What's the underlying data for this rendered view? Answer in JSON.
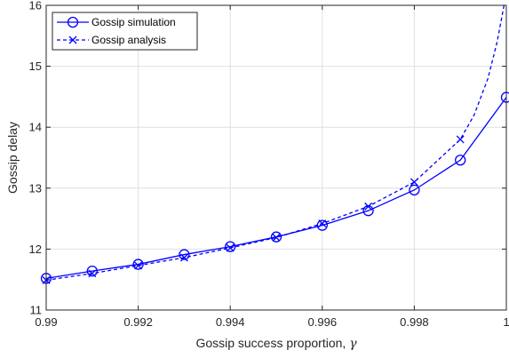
{
  "chart_data": {
    "type": "line",
    "title": "",
    "xlabel": "Gossip success proportion, ",
    "xlabel_symbol": "γ",
    "ylabel": "Gossip delay",
    "xlim": [
      0.99,
      1.0
    ],
    "ylim": [
      11,
      16
    ],
    "x_ticks": [
      0.99,
      0.992,
      0.994,
      0.996,
      0.998,
      1.0
    ],
    "x_tick_labels": [
      "0.99",
      "0.992",
      "0.994",
      "0.996",
      "0.998",
      "1"
    ],
    "y_ticks": [
      11,
      12,
      13,
      14,
      15,
      16
    ],
    "y_tick_labels": [
      "11",
      "12",
      "13",
      "14",
      "15",
      "16"
    ],
    "grid": true,
    "legend_position": "top-left",
    "color": "#0000ff",
    "series": [
      {
        "name": "Gossip simulation",
        "style": "solid",
        "marker": "circle",
        "x": [
          0.99,
          0.991,
          0.992,
          0.993,
          0.994,
          0.995,
          0.996,
          0.997,
          0.998,
          0.999,
          1.0
        ],
        "y": [
          11.52,
          11.64,
          11.75,
          11.91,
          12.04,
          12.2,
          12.39,
          12.63,
          12.97,
          13.46,
          14.49
        ]
      },
      {
        "name": "Gossip analysis",
        "style": "dashed",
        "marker": "x",
        "x": [
          0.99,
          0.991,
          0.992,
          0.993,
          0.994,
          0.995,
          0.996,
          0.997,
          0.998,
          0.999
        ],
        "y": [
          11.49,
          11.6,
          11.73,
          11.86,
          12.02,
          12.19,
          12.42,
          12.7,
          13.1,
          13.8
        ],
        "curve_x": [
          0.99,
          0.991,
          0.992,
          0.993,
          0.994,
          0.995,
          0.996,
          0.997,
          0.998,
          0.999,
          0.9993,
          0.9996,
          0.9998,
          0.99995
        ],
        "curve_y": [
          11.49,
          11.6,
          11.73,
          11.86,
          12.02,
          12.19,
          12.42,
          12.7,
          13.1,
          13.8,
          14.2,
          14.8,
          15.4,
          16.0
        ]
      }
    ]
  }
}
